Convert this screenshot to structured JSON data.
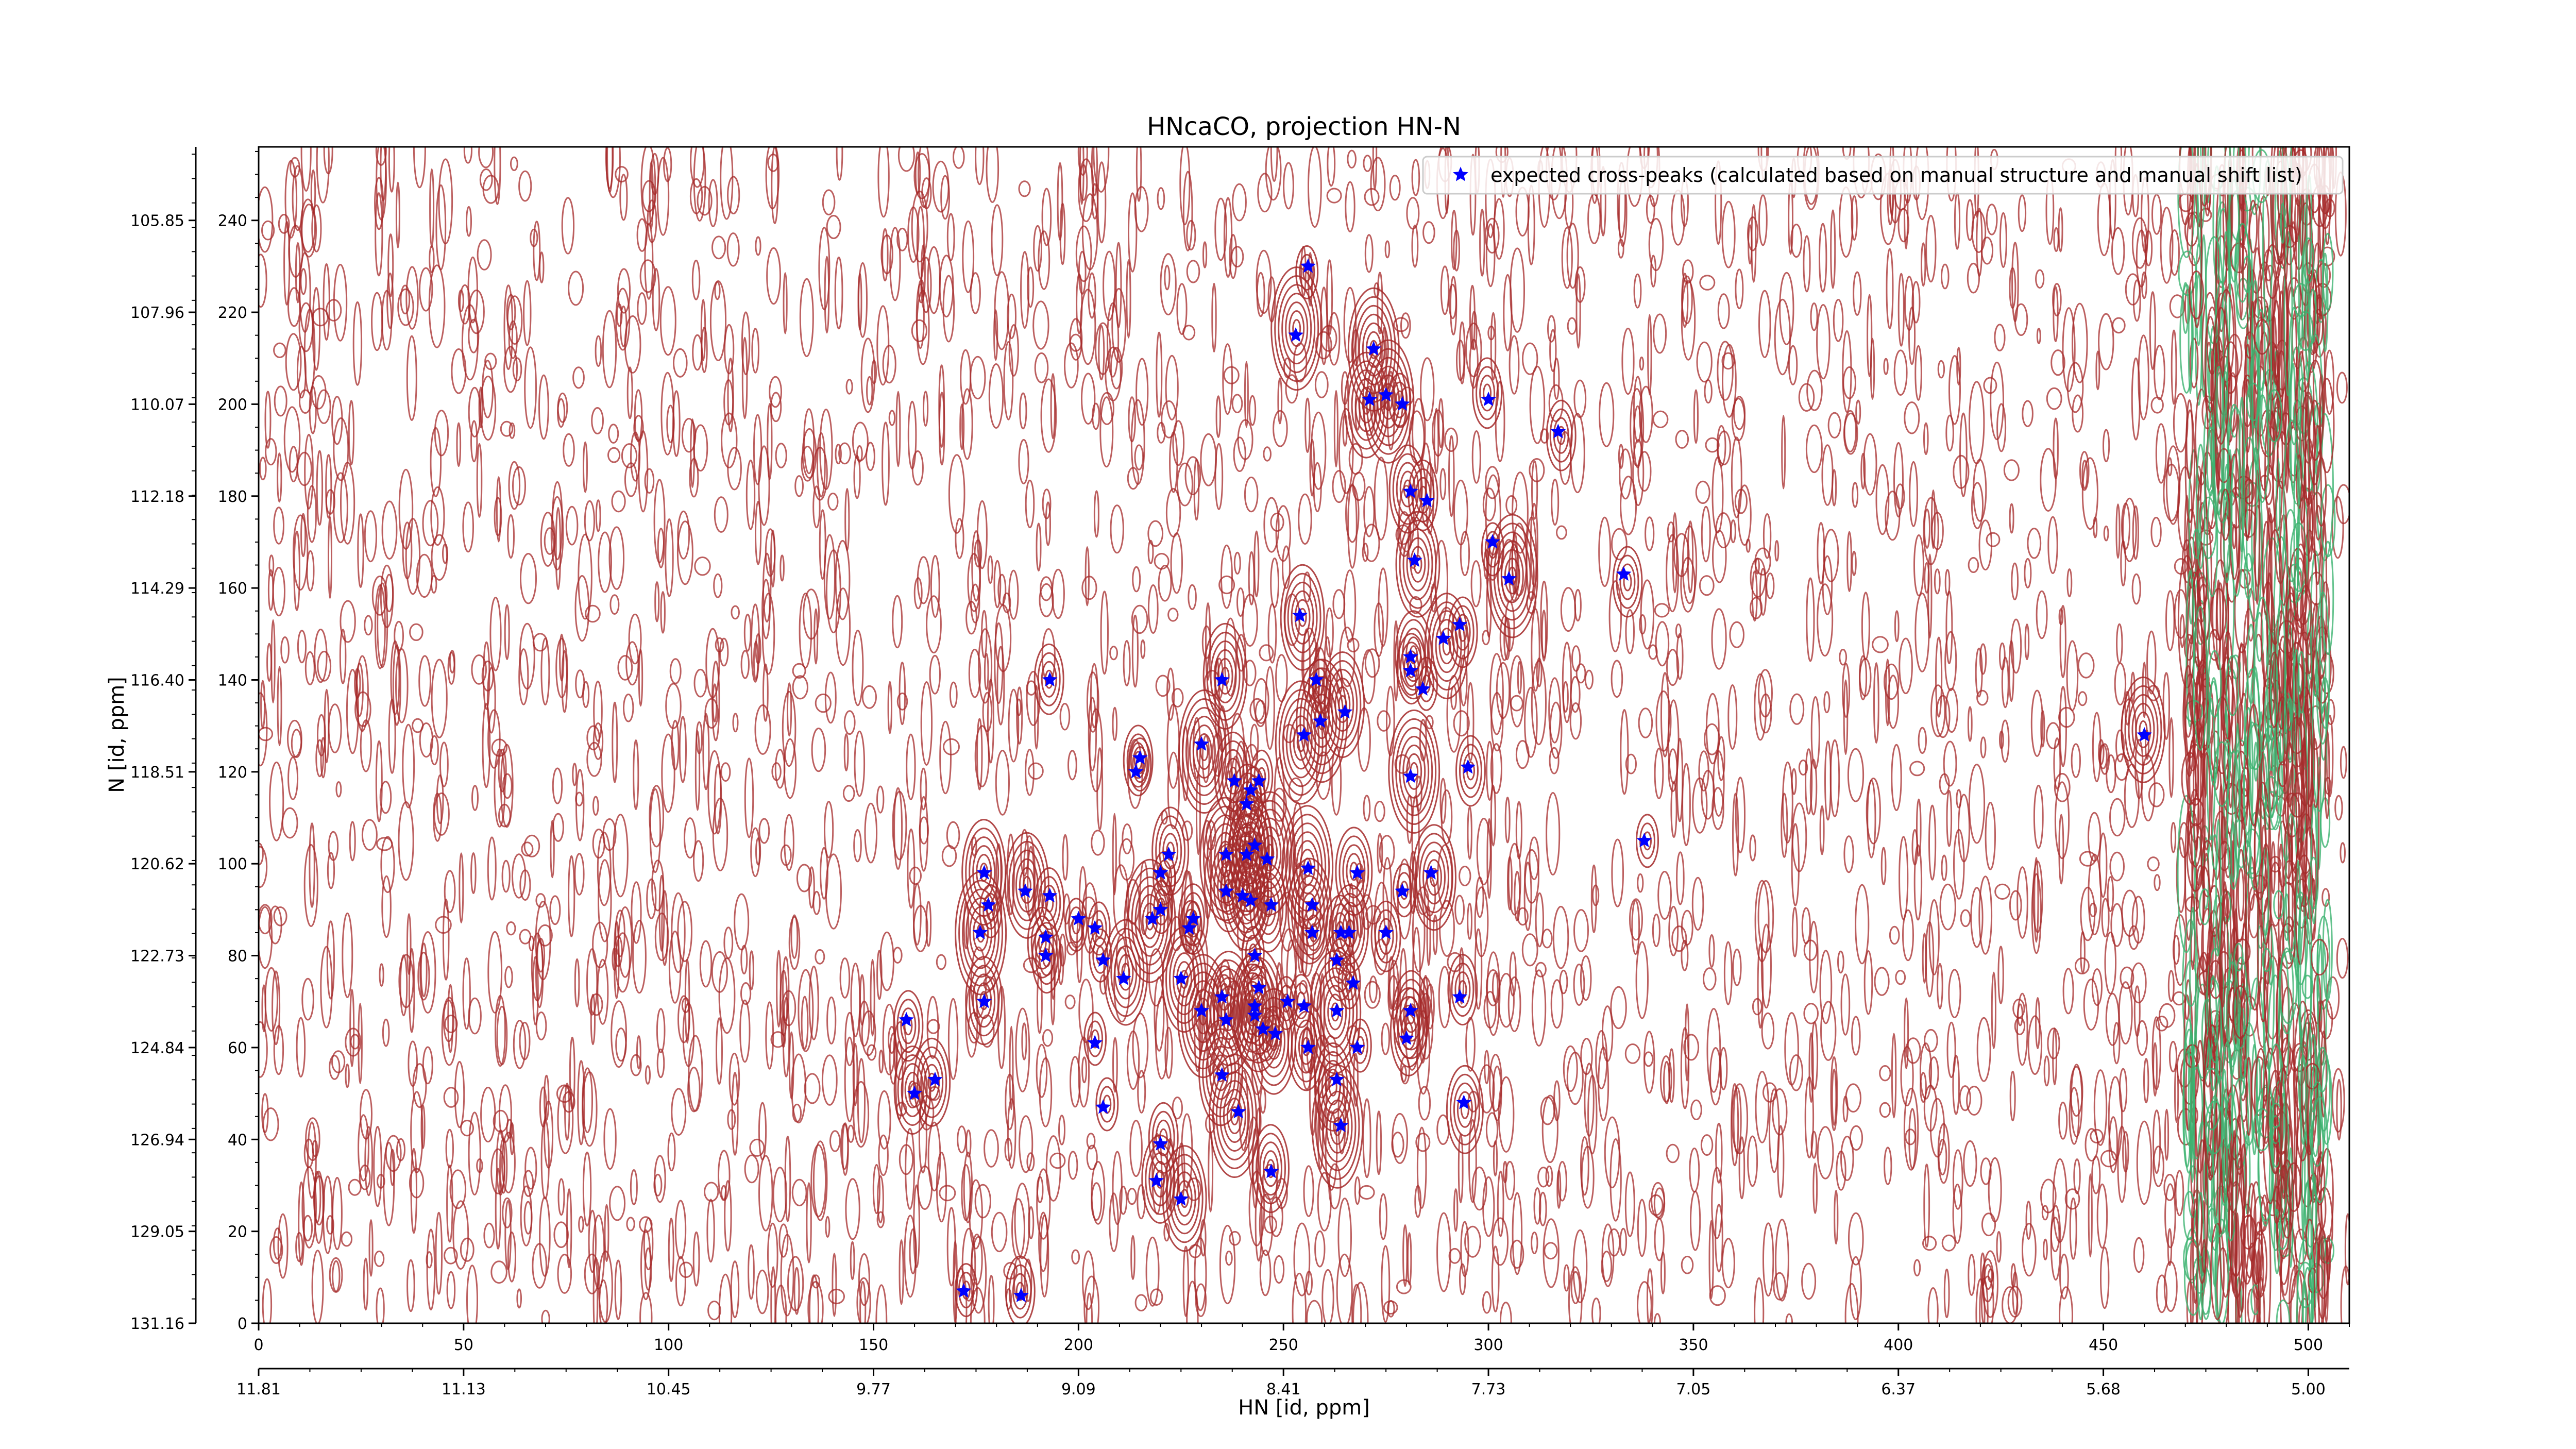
{
  "chart_data": {
    "type": "scatter",
    "title": "HNcaCO, projection HN-N",
    "xlabel": "HN [id, ppm]",
    "ylabel": "N [id, ppm]",
    "xlim": [
      0,
      510
    ],
    "ylim": [
      0,
      256
    ],
    "x_ticks": [
      0,
      50,
      100,
      150,
      200,
      250,
      300,
      350,
      400,
      450,
      500
    ],
    "y_ticks": [
      0,
      20,
      40,
      60,
      80,
      100,
      120,
      140,
      160,
      180,
      200,
      220,
      240
    ],
    "x_ppm_ticks": [
      {
        "pos": 0,
        "label": "11.81"
      },
      {
        "pos": 50,
        "label": "11.13"
      },
      {
        "pos": 100,
        "label": "10.45"
      },
      {
        "pos": 150,
        "label": "9.77"
      },
      {
        "pos": 200,
        "label": "9.09"
      },
      {
        "pos": 250,
        "label": "8.41"
      },
      {
        "pos": 300,
        "label": "7.73"
      },
      {
        "pos": 350,
        "label": "7.05"
      },
      {
        "pos": 400,
        "label": "6.37"
      },
      {
        "pos": 450,
        "label": "5.68"
      },
      {
        "pos": 500,
        "label": "5.00"
      }
    ],
    "y_ppm_ticks": [
      {
        "pos": 0,
        "label": "131.16"
      },
      {
        "pos": 20,
        "label": "129.05"
      },
      {
        "pos": 40,
        "label": "126.94"
      },
      {
        "pos": 60,
        "label": "124.84"
      },
      {
        "pos": 80,
        "label": "122.73"
      },
      {
        "pos": 100,
        "label": "120.62"
      },
      {
        "pos": 120,
        "label": "118.51"
      },
      {
        "pos": 140,
        "label": "116.40"
      },
      {
        "pos": 160,
        "label": "114.29"
      },
      {
        "pos": 180,
        "label": "112.18"
      },
      {
        "pos": 200,
        "label": "110.07"
      },
      {
        "pos": 220,
        "label": "107.96"
      },
      {
        "pos": 240,
        "label": "105.85"
      }
    ],
    "grid": false,
    "legend_position": "top-right",
    "series": [
      {
        "name": "expected cross-peaks (calculated based on manual structure and manual shift list)",
        "color": "#0000ff",
        "marker": "star",
        "points": [
          [
            256,
            230
          ],
          [
            253,
            215
          ],
          [
            272,
            212
          ],
          [
            275,
            202
          ],
          [
            271,
            201
          ],
          [
            279,
            200
          ],
          [
            300,
            201
          ],
          [
            317,
            194
          ],
          [
            281,
            181
          ],
          [
            285,
            179
          ],
          [
            301,
            170
          ],
          [
            282,
            166
          ],
          [
            305,
            162
          ],
          [
            333,
            163
          ],
          [
            254,
            154
          ],
          [
            293,
            152
          ],
          [
            289,
            149
          ],
          [
            281,
            145
          ],
          [
            281,
            142
          ],
          [
            284,
            138
          ],
          [
            193,
            140
          ],
          [
            235,
            140
          ],
          [
            258,
            140
          ],
          [
            259,
            131
          ],
          [
            265,
            133
          ],
          [
            255,
            128
          ],
          [
            215,
            123
          ],
          [
            214,
            120
          ],
          [
            230,
            126
          ],
          [
            281,
            119
          ],
          [
            295,
            121
          ],
          [
            338,
            105
          ],
          [
            242,
            116
          ],
          [
            241,
            113
          ],
          [
            244,
            118
          ],
          [
            238,
            118
          ],
          [
            243,
            104
          ],
          [
            241,
            102
          ],
          [
            236,
            102
          ],
          [
            222,
            102
          ],
          [
            220,
            98
          ],
          [
            256,
            99
          ],
          [
            268,
            98
          ],
          [
            246,
            101
          ],
          [
            279,
            94
          ],
          [
            286,
            98
          ],
          [
            236,
            94
          ],
          [
            240,
            93
          ],
          [
            242,
            92
          ],
          [
            247,
            91
          ],
          [
            257,
            91
          ],
          [
            220,
            90
          ],
          [
            218,
            88
          ],
          [
            228,
            88
          ],
          [
            227,
            86
          ],
          [
            200,
            88
          ],
          [
            204,
            86
          ],
          [
            193,
            93
          ],
          [
            187,
            94
          ],
          [
            177,
            98
          ],
          [
            178,
            91
          ],
          [
            176,
            85
          ],
          [
            192,
            84
          ],
          [
            192,
            80
          ],
          [
            206,
            79
          ],
          [
            211,
            75
          ],
          [
            225,
            75
          ],
          [
            243,
            80
          ],
          [
            257,
            85
          ],
          [
            264,
            85
          ],
          [
            266,
            85
          ],
          [
            275,
            85
          ],
          [
            263,
            79
          ],
          [
            267,
            74
          ],
          [
            235,
            71
          ],
          [
            243,
            69
          ],
          [
            244,
            73
          ],
          [
            230,
            68
          ],
          [
            251,
            70
          ],
          [
            255,
            69
          ],
          [
            263,
            68
          ],
          [
            281,
            68
          ],
          [
            293,
            71
          ],
          [
            236,
            66
          ],
          [
            243,
            67
          ],
          [
            245,
            64
          ],
          [
            248,
            63
          ],
          [
            256,
            60
          ],
          [
            268,
            60
          ],
          [
            280,
            62
          ],
          [
            204,
            61
          ],
          [
            158,
            66
          ],
          [
            177,
            70
          ],
          [
            235,
            54
          ],
          [
            263,
            53
          ],
          [
            160,
            50
          ],
          [
            165,
            53
          ],
          [
            206,
            47
          ],
          [
            294,
            48
          ],
          [
            239,
            46
          ],
          [
            264,
            43
          ],
          [
            220,
            39
          ],
          [
            247,
            33
          ],
          [
            219,
            31
          ],
          [
            225,
            27
          ],
          [
            172,
            7
          ],
          [
            186,
            6
          ],
          [
            460,
            128
          ]
        ]
      }
    ],
    "contours": {
      "positive_color": "#a52a2a",
      "negative_color": "#3cb371"
    }
  }
}
